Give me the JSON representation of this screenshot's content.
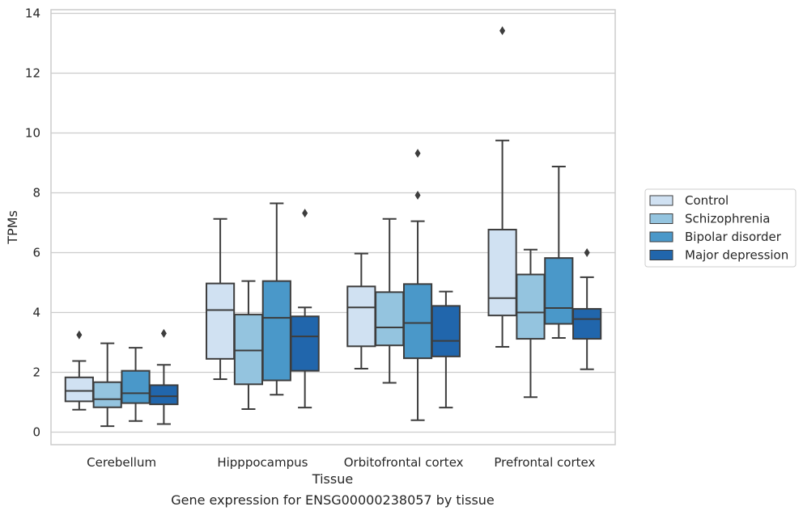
{
  "chart_data": {
    "type": "boxplot",
    "title": "",
    "caption": "Gene expression for ENSG00000238057 by tissue",
    "xlabel": "Tissue",
    "ylabel": "TPMs",
    "ylim": [
      -0.45,
      14.1
    ],
    "yticks": [
      0,
      2,
      4,
      6,
      8,
      10,
      12,
      14
    ],
    "grid": "horizontal",
    "legend_position": "right",
    "categories": [
      "Cerebellum",
      "Hipppocampus",
      "Orbitofrontal cortex",
      "Prefrontal cortex"
    ],
    "series": [
      {
        "name": "Control",
        "color": "#d0e1f2",
        "boxes": [
          {
            "whislo": 0.75,
            "q1": 1.03,
            "med": 1.38,
            "q3": 1.83,
            "whishi": 2.38,
            "fliers": [
              3.25
            ]
          },
          {
            "whislo": 1.77,
            "q1": 2.45,
            "med": 4.08,
            "q3": 4.97,
            "whishi": 7.13,
            "fliers": []
          },
          {
            "whislo": 2.12,
            "q1": 2.87,
            "med": 4.17,
            "q3": 4.87,
            "whishi": 5.97,
            "fliers": []
          },
          {
            "whislo": 2.85,
            "q1": 3.9,
            "med": 4.48,
            "q3": 6.77,
            "whishi": 9.75,
            "fliers": [
              13.42
            ]
          }
        ]
      },
      {
        "name": "Schizophrenia",
        "color": "#94c4df",
        "boxes": [
          {
            "whislo": 0.2,
            "q1": 0.83,
            "med": 1.1,
            "q3": 1.67,
            "whishi": 2.97,
            "fliers": []
          },
          {
            "whislo": 0.77,
            "q1": 1.6,
            "med": 2.73,
            "q3": 3.93,
            "whishi": 5.05,
            "fliers": []
          },
          {
            "whislo": 1.65,
            "q1": 2.9,
            "med": 3.5,
            "q3": 4.68,
            "whishi": 7.13,
            "fliers": []
          },
          {
            "whislo": 1.17,
            "q1": 3.12,
            "med": 4.0,
            "q3": 5.27,
            "whishi": 6.1,
            "fliers": []
          }
        ]
      },
      {
        "name": "Bipolar disorder",
        "color": "#4a98c9",
        "boxes": [
          {
            "whislo": 0.37,
            "q1": 0.97,
            "med": 1.3,
            "q3": 2.05,
            "whishi": 2.82,
            "fliers": []
          },
          {
            "whislo": 1.25,
            "q1": 1.73,
            "med": 3.82,
            "q3": 5.05,
            "whishi": 7.65,
            "fliers": []
          },
          {
            "whislo": 0.4,
            "q1": 2.47,
            "med": 3.65,
            "q3": 4.95,
            "whishi": 7.05,
            "fliers": [
              7.92,
              9.32
            ]
          },
          {
            "whislo": 3.15,
            "q1": 3.62,
            "med": 4.15,
            "q3": 5.82,
            "whishi": 8.88,
            "fliers": []
          }
        ]
      },
      {
        "name": "Major depression",
        "color": "#2166ac",
        "boxes": [
          {
            "whislo": 0.27,
            "q1": 0.93,
            "med": 1.2,
            "q3": 1.57,
            "whishi": 2.25,
            "fliers": [
              3.3
            ]
          },
          {
            "whislo": 0.82,
            "q1": 2.05,
            "med": 3.2,
            "q3": 3.87,
            "whishi": 4.17,
            "fliers": [
              7.32
            ]
          },
          {
            "whislo": 0.82,
            "q1": 2.53,
            "med": 3.05,
            "q3": 4.22,
            "whishi": 4.7,
            "fliers": []
          },
          {
            "whislo": 2.1,
            "q1": 3.12,
            "med": 3.78,
            "q3": 4.12,
            "whishi": 5.18,
            "fliers": [
              6.0
            ]
          }
        ]
      }
    ]
  }
}
